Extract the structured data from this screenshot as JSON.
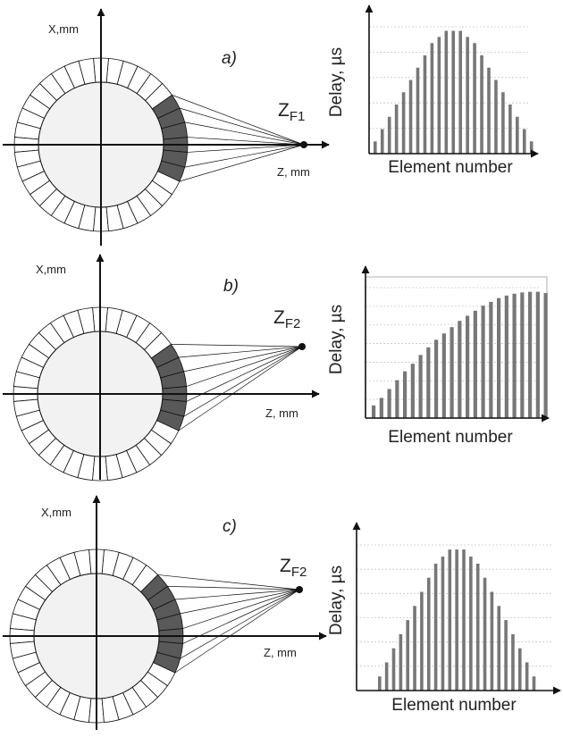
{
  "colors": {
    "ring_fill": "#ffffff",
    "inner_fill": "#f2f2f2",
    "active_element": "#595959",
    "line": "#111111",
    "bar": "#777777",
    "grid": "#c8c8c8",
    "frame": "#bbbbbb"
  },
  "panels": [
    {
      "id": "a",
      "label": "a)",
      "x_axis_label": "X,mm",
      "z_axis_label": "Z, mm",
      "focus_main": "Z",
      "focus_sub": "F1",
      "focus_position": "on-axis",
      "chart_data": {
        "type": "bar",
        "title": "",
        "xlabel": "Element number",
        "ylabel": "Delay, µs",
        "element_count": 23,
        "values": [
          1,
          2,
          3,
          4,
          5,
          6,
          7,
          8,
          9,
          9.5,
          10,
          10,
          10,
          9.5,
          9,
          8,
          7,
          6,
          5,
          4,
          3,
          2,
          1
        ],
        "ylim": [
          0,
          11
        ],
        "grid": true
      }
    },
    {
      "id": "b",
      "label": "b)",
      "x_axis_label": "X,mm",
      "z_axis_label": "Z, mm",
      "focus_main": "Z",
      "focus_sub": "F2",
      "focus_position": "off-axis",
      "chart_data": {
        "type": "bar",
        "title": "",
        "xlabel": "Element number",
        "ylabel": "Delay, µs",
        "element_count": 23,
        "values": [
          1,
          1.6,
          2.3,
          3,
          3.7,
          4.3,
          5,
          5.6,
          6.2,
          6.7,
          7.2,
          7.7,
          8.1,
          8.5,
          8.9,
          9.2,
          9.5,
          9.7,
          9.85,
          9.95,
          10,
          10,
          9.9
        ],
        "ylim": [
          0,
          11
        ],
        "grid": true
      }
    },
    {
      "id": "c",
      "label": "c)",
      "x_axis_label": "X,mm",
      "z_axis_label": "Z, mm",
      "focus_main": "Z",
      "focus_sub": "F2",
      "focus_position": "off-axis",
      "chart_data": {
        "type": "bar",
        "title": "",
        "xlabel": "Element number",
        "ylabel": "Delay, µs",
        "element_count": 23,
        "values": [
          1,
          2,
          3,
          4,
          5,
          6,
          7,
          8,
          9,
          9.5,
          10,
          10,
          10,
          9.5,
          9,
          8,
          7,
          6,
          5,
          4,
          3,
          2,
          1
        ],
        "ylim": [
          0,
          11
        ],
        "grid": true
      }
    }
  ]
}
